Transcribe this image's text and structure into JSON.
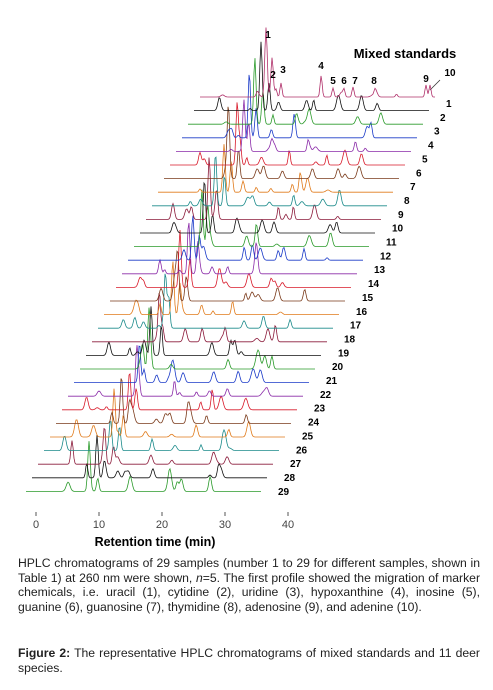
{
  "figure": {
    "legend_title": "Mixed standards",
    "peak_labels": [
      "1",
      "2",
      "3",
      "4",
      "5",
      "6",
      "7",
      "8",
      "9",
      "10"
    ],
    "trace_labels": [
      "1",
      "2",
      "3",
      "4",
      "5",
      "6",
      "7",
      "8",
      "9",
      "10",
      "11",
      "12",
      "13",
      "14",
      "15",
      "16",
      "17",
      "18",
      "19",
      "20",
      "21",
      "22",
      "23",
      "24",
      "25",
      "26",
      "27",
      "28",
      "29"
    ],
    "x_axis": {
      "label": "Retention time (min)",
      "ticks": [
        0,
        10,
        20,
        30,
        40
      ]
    }
  },
  "caption": {
    "body_before": "HPLC chromatograms of 29 samples (number 1 to 29 for different samples, shown in Table 1) at 260 nm were shown, ",
    "body_italic": "n",
    "body_after": "=5. The first profile showed the migration of marker chemicals, i.e. uracil (1), cytidine (2), uridine (3), hypoxanthine (4), inosine (5), guanine (6), guanosine (7), thymidine (8), adenosine (9), and adenine (10).",
    "figure_label": "Figure 2:",
    "figure_text": " The representative HPLC chromatograms of mixed standards and 11 deer species."
  }
}
